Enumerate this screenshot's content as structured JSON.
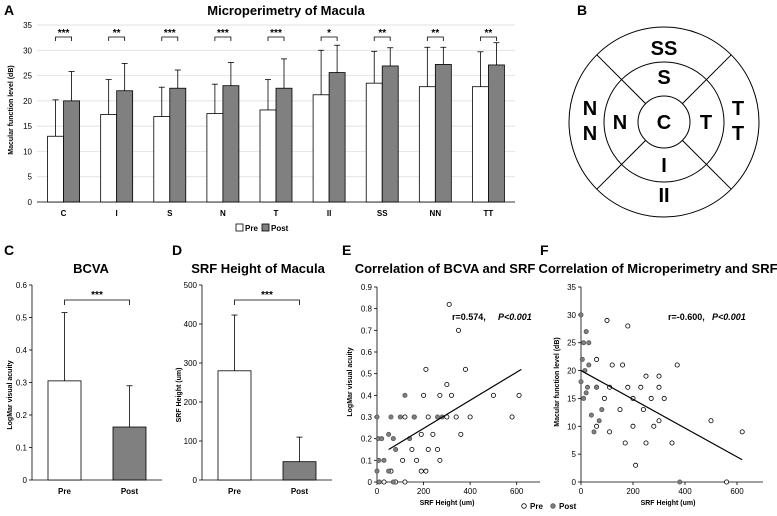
{
  "chart_data": [
    {
      "id": "A",
      "panel_letter": "A",
      "type": "bar",
      "title": "Microperimetry of Macula",
      "ylabel": "Macular function level (dB)",
      "xlabel": "",
      "ylim": [
        0,
        35
      ],
      "yticks": [
        "0",
        "5",
        "10",
        "15",
        "20",
        "25",
        "30",
        "35"
      ],
      "categories": [
        "C",
        "I",
        "S",
        "N",
        "T",
        "II",
        "SS",
        "NN",
        "TT"
      ],
      "series": [
        {
          "name": "Pre",
          "color": "#ffffff",
          "values": [
            13.0,
            17.3,
            16.9,
            17.5,
            18.2,
            21.2,
            23.5,
            22.8,
            22.8
          ],
          "errors": [
            7.2,
            6.9,
            5.8,
            5.8,
            6.0,
            8.8,
            6.3,
            7.8,
            6.9
          ]
        },
        {
          "name": "Post",
          "color": "#808080",
          "values": [
            20.0,
            22.0,
            22.5,
            23.0,
            22.5,
            25.6,
            26.9,
            27.2,
            27.1
          ],
          "errors": [
            5.8,
            5.4,
            3.6,
            4.6,
            5.8,
            5.4,
            3.6,
            3.4,
            4.4
          ]
        }
      ],
      "significance": [
        "***",
        "**",
        "***",
        "***",
        "***",
        "*",
        "**",
        "**",
        "**"
      ],
      "legend": [
        "Pre",
        "Post"
      ]
    },
    {
      "id": "C",
      "panel_letter": "C",
      "type": "bar",
      "title": "BCVA",
      "ylabel": "LogMar visual acuity",
      "ylim": [
        0,
        0.6
      ],
      "yticks": [
        "0",
        "0.1",
        "0.2",
        "0.3",
        "0.4",
        "0.5",
        "0.6"
      ],
      "categories": [
        "Pre",
        "Post"
      ],
      "values": [
        0.305,
        0.163
      ],
      "errors": [
        0.21,
        0.127
      ],
      "colors": [
        "#ffffff",
        "#808080"
      ],
      "significance": "***"
    },
    {
      "id": "D",
      "panel_letter": "D",
      "type": "bar",
      "title": "SRF Height of Macula",
      "ylabel": "SRF Height (um)",
      "ylim": [
        0,
        500
      ],
      "yticks": [
        "0",
        "100",
        "200",
        "300",
        "400",
        "500"
      ],
      "categories": [
        "Pre",
        "Post"
      ],
      "values": [
        280,
        47
      ],
      "errors": [
        143,
        63
      ],
      "colors": [
        "#ffffff",
        "#808080"
      ],
      "significance": "***"
    },
    {
      "id": "E",
      "panel_letter": "E",
      "type": "scatter",
      "title": "Correlation of BCVA and SRF",
      "xlabel": "SRF Height (um)",
      "ylabel": "LogMar visual acuity",
      "xlim": [
        0,
        700
      ],
      "ylim": [
        0,
        0.9
      ],
      "xticks": [
        "0",
        "200",
        "400",
        "600"
      ],
      "yticks": [
        "0",
        "0.1",
        "0.2",
        "0.3",
        "0.4",
        "0.5",
        "0.6",
        "0.7",
        "0.8",
        "0.9"
      ],
      "annotation_r": "r=0.574,",
      "annotation_p": "P<0.001",
      "trendline": {
        "x": [
          50,
          620
        ],
        "y": [
          0.15,
          0.52
        ]
      },
      "legend": [
        "Pre",
        "Post"
      ],
      "pre": [
        [
          310,
          0.82
        ],
        [
          350,
          0.7
        ],
        [
          210,
          0.52
        ],
        [
          380,
          0.52
        ],
        [
          300,
          0.45
        ],
        [
          200,
          0.4
        ],
        [
          270,
          0.4
        ],
        [
          320,
          0.4
        ],
        [
          500,
          0.4
        ],
        [
          610,
          0.4
        ],
        [
          120,
          0.3
        ],
        [
          160,
          0.3
        ],
        [
          220,
          0.3
        ],
        [
          300,
          0.3
        ],
        [
          340,
          0.3
        ],
        [
          400,
          0.3
        ],
        [
          580,
          0.3
        ],
        [
          190,
          0.22
        ],
        [
          240,
          0.22
        ],
        [
          360,
          0.22
        ],
        [
          150,
          0.15
        ],
        [
          220,
          0.15
        ],
        [
          260,
          0.15
        ],
        [
          110,
          0.1
        ],
        [
          170,
          0.1
        ],
        [
          270,
          0.1
        ],
        [
          60,
          0.05
        ],
        [
          190,
          0.05
        ],
        [
          210,
          0.05
        ],
        [
          80,
          0.0
        ],
        [
          120,
          0.0
        ],
        [
          30,
          0.0
        ]
      ],
      "post": [
        [
          0,
          0.3
        ],
        [
          5,
          0.2
        ],
        [
          8,
          0.1
        ],
        [
          10,
          0.0
        ],
        [
          0,
          0.05
        ],
        [
          50,
          0.22
        ],
        [
          60,
          0.3
        ],
        [
          70,
          0.2
        ],
        [
          80,
          0.15
        ],
        [
          100,
          0.3
        ],
        [
          120,
          0.4
        ],
        [
          140,
          0.2
        ],
        [
          50,
          0.05
        ],
        [
          70,
          0.0
        ],
        [
          30,
          0.1
        ],
        [
          260,
          0.3
        ],
        [
          280,
          0.3
        ],
        [
          160,
          0.3
        ],
        [
          20,
          0.2
        ]
      ]
    },
    {
      "id": "F",
      "panel_letter": "F",
      "type": "scatter",
      "title": "Correlation of Microperimetry and SRF",
      "xlabel": "SRF Height (um)",
      "ylabel": "Macular function level (dB)",
      "xlim": [
        0,
        700
      ],
      "ylim": [
        0,
        35
      ],
      "xticks": [
        "0",
        "200",
        "400",
        "600"
      ],
      "yticks": [
        "0",
        "5",
        "10",
        "15",
        "20",
        "25",
        "30",
        "35"
      ],
      "annotation_r": "r=-0.600,",
      "annotation_p": "P<0.001",
      "trendline": {
        "x": [
          0,
          620
        ],
        "y": [
          20,
          4
        ]
      },
      "pre": [
        [
          100,
          29
        ],
        [
          180,
          28
        ],
        [
          60,
          22
        ],
        [
          120,
          21
        ],
        [
          160,
          21
        ],
        [
          250,
          19
        ],
        [
          300,
          19
        ],
        [
          60,
          17
        ],
        [
          110,
          17
        ],
        [
          180,
          17
        ],
        [
          230,
          17
        ],
        [
          300,
          17
        ],
        [
          370,
          21
        ],
        [
          90,
          15
        ],
        [
          200,
          15
        ],
        [
          270,
          15
        ],
        [
          320,
          15
        ],
        [
          150,
          13
        ],
        [
          240,
          13
        ],
        [
          300,
          11
        ],
        [
          500,
          11
        ],
        [
          60,
          10
        ],
        [
          200,
          10
        ],
        [
          280,
          10
        ],
        [
          620,
          9
        ],
        [
          110,
          9
        ],
        [
          170,
          7
        ],
        [
          250,
          7
        ],
        [
          350,
          7
        ],
        [
          210,
          3
        ],
        [
          560,
          0
        ]
      ],
      "post": [
        [
          0,
          30
        ],
        [
          10,
          25
        ],
        [
          20,
          27
        ],
        [
          30,
          25
        ],
        [
          5,
          22
        ],
        [
          15,
          20
        ],
        [
          0,
          18
        ],
        [
          25,
          17
        ],
        [
          10,
          15
        ],
        [
          40,
          12
        ],
        [
          60,
          17
        ],
        [
          70,
          11
        ],
        [
          50,
          9
        ],
        [
          80,
          13
        ],
        [
          30,
          21
        ],
        [
          20,
          16
        ],
        [
          380,
          0
        ]
      ]
    }
  ],
  "diagram_b": {
    "panel_letter": "B",
    "regions": [
      "SS",
      "S",
      "N",
      "N",
      "N",
      "C",
      "T",
      "T",
      "T",
      "I",
      "II"
    ]
  }
}
